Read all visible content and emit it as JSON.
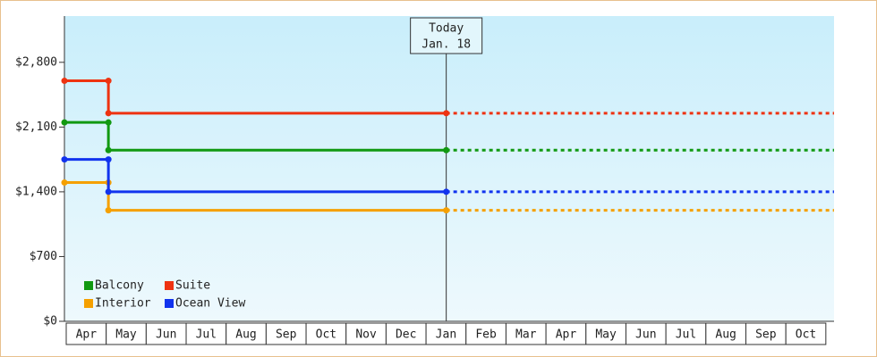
{
  "chart_data": {
    "type": "line",
    "categories": [
      "Apr",
      "May",
      "Jun",
      "Jul",
      "Aug",
      "Sep",
      "Oct",
      "Nov",
      "Dec",
      "Jan",
      "Feb",
      "Mar",
      "Apr",
      "May",
      "Jun",
      "Jul",
      "Aug",
      "Sep",
      "Oct"
    ],
    "x": [
      0,
      1.1,
      1.1,
      9.55
    ],
    "xlim": [
      0,
      19.25
    ],
    "ylim": [
      0,
      3300
    ],
    "yticks": [
      {
        "value": 0,
        "label": "$0"
      },
      {
        "value": 700,
        "label": "$700"
      },
      {
        "value": 1400,
        "label": "$1,400"
      },
      {
        "value": 2100,
        "label": "$2,100"
      },
      {
        "value": 2800,
        "label": "$2,800"
      }
    ],
    "series": [
      {
        "name": "Balcony",
        "color": "#119911",
        "values": [
          2150,
          2150,
          1850,
          1850
        ]
      },
      {
        "name": "Suite",
        "color": "#ee3311",
        "values": [
          2600,
          2600,
          2250,
          2250
        ]
      },
      {
        "name": "Interior",
        "color": "#f5a000",
        "values": [
          1500,
          1500,
          1200,
          1200
        ]
      },
      {
        "name": "Ocean View",
        "color": "#1133ee",
        "values": [
          1750,
          1750,
          1400,
          1400
        ]
      }
    ],
    "annotation": {
      "lines": [
        "Today",
        "Jan. 18"
      ],
      "x": 9.55
    },
    "legend": "lower left"
  }
}
